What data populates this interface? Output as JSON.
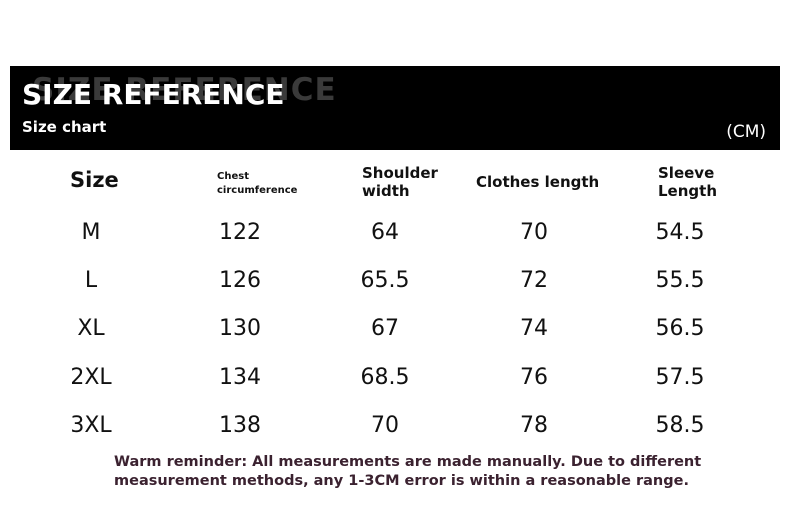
{
  "banner": {
    "ghost_text": "SIZE REFERENCE",
    "title": "SIZE REFERENCE",
    "subtitle": "Size chart",
    "unit": "(CM)"
  },
  "table": {
    "headers": {
      "size": "Size",
      "chest": "Chest circumference",
      "shoulder": "Shoulder width",
      "length": "Clothes length",
      "sleeve": "Sleeve Length"
    },
    "rows": [
      {
        "size": "M",
        "chest": "122",
        "shoulder": "64",
        "length": "70",
        "sleeve": "54.5"
      },
      {
        "size": "L",
        "chest": "126",
        "shoulder": "65.5",
        "length": "72",
        "sleeve": "55.5"
      },
      {
        "size": "XL",
        "chest": "130",
        "shoulder": "67",
        "length": "74",
        "sleeve": "56.5"
      },
      {
        "size": "2XL",
        "chest": "134",
        "shoulder": "68.5",
        "length": "76",
        "sleeve": "57.5"
      },
      {
        "size": "3XL",
        "chest": "138",
        "shoulder": "70",
        "length": "78",
        "sleeve": "58.5"
      }
    ]
  },
  "note": "Warm reminder: All measurements are made manually. Due to different measurement methods, any 1-3CM error is within a reasonable range.",
  "colors": {
    "banner_bg": "#000000",
    "banner_text": "#ffffff",
    "note_text": "#3b2230"
  }
}
